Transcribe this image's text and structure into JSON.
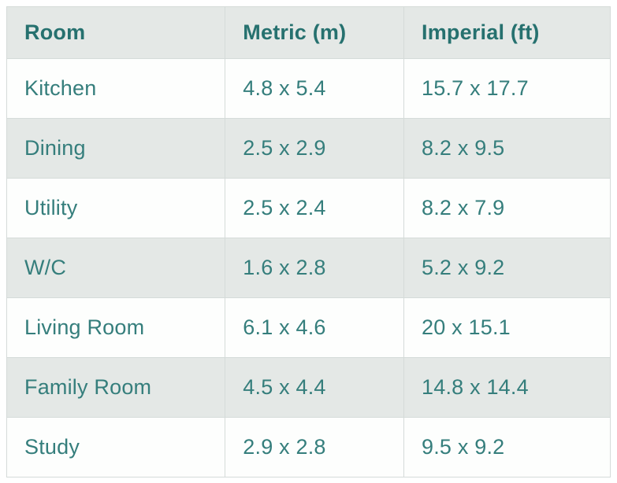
{
  "table": {
    "columns": [
      {
        "label": "Room"
      },
      {
        "label": "Metric (m)"
      },
      {
        "label": "Imperial (ft)"
      }
    ],
    "rows": [
      {
        "room": "Kitchen",
        "metric": "4.8 x 5.4",
        "imperial": "15.7 x 17.7"
      },
      {
        "room": "Dining",
        "metric": "2.5 x 2.9",
        "imperial": "8.2 x 9.5"
      },
      {
        "room": "Utility",
        "metric": "2.5 x 2.4",
        "imperial": "8.2 x 7.9"
      },
      {
        "room": "W/C",
        "metric": "1.6 x 2.8",
        "imperial": "5.2 x 9.2"
      },
      {
        "room": "Living Room",
        "metric": "6.1 x 4.6",
        "imperial": "20 x 15.1"
      },
      {
        "room": "Family Room",
        "metric": "4.5 x 4.4",
        "imperial": "14.8 x 14.4"
      },
      {
        "room": "Study",
        "metric": "2.9 x 2.8",
        "imperial": "9.5 x 9.2"
      }
    ]
  },
  "colors": {
    "header_text": "#26716f",
    "body_text": "#357e7c",
    "band_background": "#e4e8e6",
    "row_background": "#fdfefd",
    "border": "#d5dbd9",
    "page_background": "#ffffff"
  },
  "chart_data": {
    "type": "table",
    "columns": [
      "Room",
      "Metric (m)",
      "Imperial (ft)"
    ],
    "rows": [
      [
        "Kitchen",
        "4.8 x 5.4",
        "15.7 x 17.7"
      ],
      [
        "Dining",
        "2.5 x 2.9",
        "8.2 x 9.5"
      ],
      [
        "Utility",
        "2.5 x 2.4",
        "8.2 x 7.9"
      ],
      [
        "W/C",
        "1.6 x 2.8",
        "5.2 x 9.2"
      ],
      [
        "Living Room",
        "6.1 x 4.6",
        "20 x 15.1"
      ],
      [
        "Family Room",
        "4.5 x 4.4",
        "14.8 x 14.4"
      ],
      [
        "Study",
        "2.9 x 2.8",
        "9.5 x 9.2"
      ]
    ]
  }
}
